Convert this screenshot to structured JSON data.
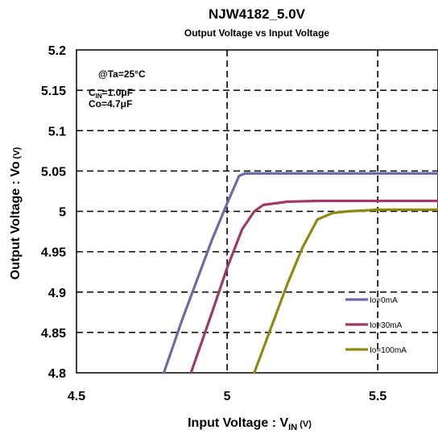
{
  "chart_data": {
    "type": "line",
    "title": "NJW4182_5.0V",
    "subtitle": "Output Voltage vs Input Voltage",
    "xlabel": "Input Voltage : V",
    "xlabel_sub": "IN",
    "xlabel_unit": " (V)",
    "ylabel": "Output Voltage : Vo",
    "ylabel_unit": " (V)",
    "xlim": [
      4.5,
      5.7
    ],
    "ylim": [
      4.8,
      5.2
    ],
    "x_ticks": [
      4.5,
      5,
      5.5
    ],
    "x_tick_labels": [
      "4.5",
      "5",
      "5.5"
    ],
    "y_ticks": [
      4.8,
      4.85,
      4.9,
      4.95,
      5,
      5.05,
      5.1,
      5.15,
      5.2
    ],
    "y_tick_labels": [
      "4.8",
      "4.85",
      "4.9",
      "4.95",
      "5",
      "5.05",
      "5.1",
      "5.15",
      "5.2"
    ],
    "grid": true,
    "annotations": [
      "@Ta=25°C",
      "C",
      "IN",
      "=1.0μF",
      "Co=4.7μF"
    ],
    "legend_position": "bottom-right",
    "series": [
      {
        "name": "Io=0mA",
        "color": "#6b6ba8",
        "x": [
          4.79,
          4.85,
          4.9,
          4.95,
          5.0,
          5.04,
          5.06,
          5.1,
          5.3,
          5.5,
          5.7
        ],
        "y": [
          4.8,
          4.865,
          4.915,
          4.965,
          5.01,
          5.044,
          5.047,
          5.047,
          5.047,
          5.047,
          5.047
        ]
      },
      {
        "name": "Io=30mA",
        "color": "#9e3a68",
        "x": [
          4.88,
          4.95,
          5.0,
          5.05,
          5.09,
          5.12,
          5.2,
          5.3,
          5.4,
          5.5,
          5.7
        ],
        "y": [
          4.8,
          4.875,
          4.93,
          4.978,
          5.0,
          5.008,
          5.012,
          5.013,
          5.013,
          5.013,
          5.013
        ]
      },
      {
        "name": "Io=100mA",
        "color": "#8c8a10",
        "x": [
          5.09,
          5.15,
          5.2,
          5.25,
          5.3,
          5.35,
          5.4,
          5.45,
          5.5,
          5.6,
          5.7
        ],
        "y": [
          4.8,
          4.86,
          4.91,
          4.955,
          4.99,
          4.998,
          5.0,
          5.001,
          5.002,
          5.002,
          5.002
        ]
      }
    ]
  }
}
